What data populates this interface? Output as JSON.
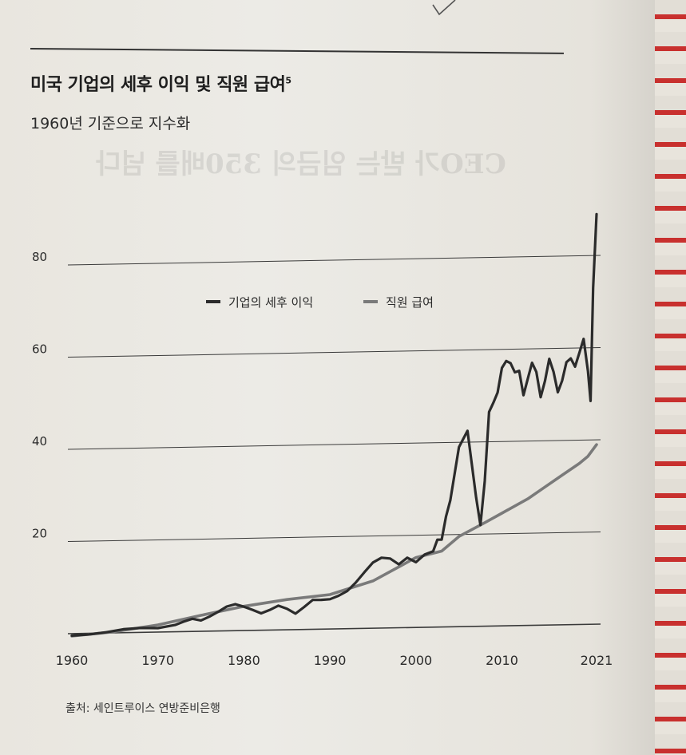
{
  "title": "미국 기업의 세후 이익 및 직원 급여",
  "title_footnote": "5",
  "subtitle": "1960년 기준으로 지수화",
  "source": "출처: 세인트루이스 연방준비은행",
  "colors": {
    "profit": "#2b2b2b",
    "wages": "#7a7a7a",
    "grid": "#3a3a3a"
  },
  "chart_data": {
    "type": "line",
    "title": "미국 기업의 세후 이익 및 직원 급여",
    "subtitle": "1960년 기준으로 지수화",
    "x_ticks": [
      "1960",
      "1970",
      "1980",
      "1990",
      "2000",
      "2010",
      "2021"
    ],
    "y_ticks": [
      "20",
      "40",
      "60",
      "80"
    ],
    "ylim": [
      0,
      80
    ],
    "xlim": [
      1960,
      2021
    ],
    "grid": true,
    "legend_position": "top-center",
    "series": [
      {
        "name": "기업의 세후 이익",
        "x": [
          1960,
          1962,
          1964,
          1966,
          1968,
          1970,
          1972,
          1973,
          1974,
          1975,
          1976,
          1977,
          1978,
          1979,
          1980,
          1981,
          1982,
          1983,
          1984,
          1985,
          1986,
          1987,
          1988,
          1989,
          1990,
          1991,
          1992,
          1993,
          1994,
          1995,
          1996,
          1997,
          1998,
          1999,
          2000,
          2001,
          2002,
          2002.5,
          2003,
          2003.5,
          2004,
          2005,
          2006,
          2007,
          2007.5,
          2008,
          2008.5,
          2009,
          2009.5,
          2010,
          2010.5,
          2011,
          2011.5,
          2012,
          2012.5,
          2013,
          2013.5,
          2014,
          2014.5,
          2015,
          2015.5,
          2016,
          2016.5,
          2017,
          2017.5,
          2018,
          2018.5,
          2019,
          2019.5,
          2020,
          2020.3,
          2020.6,
          2021
        ],
        "values": [
          0.6,
          0.8,
          1.2,
          1.8,
          2,
          1.9,
          2.5,
          3.2,
          3.8,
          3.4,
          4.2,
          5.2,
          6.3,
          6.8,
          6.2,
          5.5,
          4.7,
          5.4,
          6.3,
          5.6,
          4.5,
          5.9,
          7.4,
          7.4,
          7.5,
          8.2,
          9.2,
          11,
          13.2,
          15.3,
          16.3,
          16.1,
          14.8,
          16.2,
          15.2,
          16.8,
          17.5,
          20,
          20,
          25,
          28.5,
          40,
          43.5,
          29,
          23,
          32.5,
          47.5,
          49.5,
          51.7,
          57,
          58.5,
          58,
          56,
          56.3,
          51,
          54.5,
          58,
          56,
          50.5,
          54,
          58.8,
          56,
          51.5,
          54,
          58,
          58.8,
          57,
          60,
          63,
          56,
          49.5,
          74,
          90
        ]
      },
      {
        "name": "직원 급여",
        "x": [
          1960,
          1965,
          1970,
          1975,
          1980,
          1985,
          1990,
          1995,
          2000,
          2003,
          2005,
          2008,
          2010,
          2013,
          2015,
          2017,
          2019,
          2020,
          2021
        ],
        "values": [
          0.5,
          1.3,
          2.6,
          4.5,
          6.3,
          7.6,
          8.5,
          11.3,
          16.2,
          17.5,
          20.6,
          23.5,
          25.5,
          28.5,
          31,
          33.5,
          36,
          37.5,
          40
        ]
      }
    ]
  }
}
